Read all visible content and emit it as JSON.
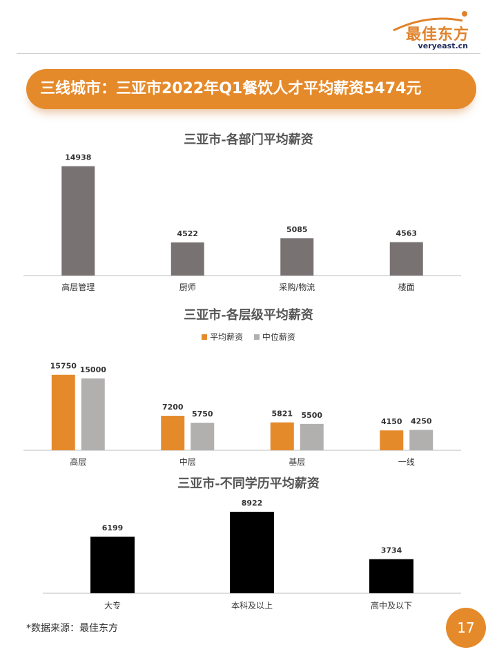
{
  "logo": {
    "name_cn": "最佳东方",
    "domain": "veryeast.cn",
    "colors": {
      "orange": "#e0822a",
      "navy": "#1e2a5a"
    }
  },
  "banner": {
    "text": "三线城市：三亚市2022年Q1餐饮人才平均薪资5474元",
    "color": "#e58a2b"
  },
  "chart_data": [
    {
      "type": "bar",
      "title": "三亚市-各部门平均薪资",
      "categories": [
        "高层管理",
        "厨师",
        "采购/物流",
        "楼面"
      ],
      "series": [
        {
          "values": [
            14938,
            4522,
            5085,
            4563
          ],
          "color": "#787272"
        }
      ],
      "ylim": [
        0,
        15000
      ]
    },
    {
      "type": "bar",
      "title": "三亚市-各层级平均薪资",
      "categories": [
        "高层",
        "中层",
        "基层",
        "一线"
      ],
      "series": [
        {
          "name": "平均薪资",
          "values": [
            15750,
            7200,
            5821,
            4150
          ],
          "color": "#e58a2b"
        },
        {
          "name": "中位薪资",
          "values": [
            15000,
            5750,
            5500,
            4250
          ],
          "color": "#b2afaf"
        }
      ],
      "legend": "top-center",
      "ylim": [
        0,
        16000
      ]
    },
    {
      "type": "bar",
      "title": "三亚市-不同学历平均薪资",
      "categories": [
        "大专",
        "本科及以上",
        "高中及以下"
      ],
      "series": [
        {
          "values": [
            6199,
            8922,
            3734
          ],
          "color": "#000000"
        }
      ],
      "ylim": [
        0,
        9000
      ]
    }
  ],
  "footer": {
    "source": "*数据来源：最佳东方",
    "page_number": "17"
  }
}
